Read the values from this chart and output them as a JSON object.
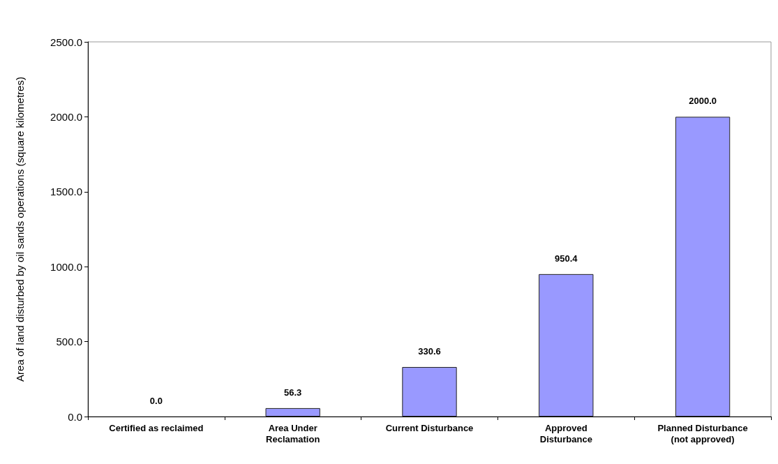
{
  "chart_data": {
    "type": "bar",
    "ylabel": "Area of land disturbed by oil sands operations (square kilometres)",
    "categories": [
      "Certified as reclaimed",
      "Area Under\nReclamation",
      "Current Disturbance",
      "Approved\nDisturbance",
      "Planned Disturbance\n(not approved)"
    ],
    "values": [
      0.0,
      56.3,
      330.6,
      950.4,
      2000.0
    ],
    "value_labels": [
      "0.0",
      "56.3",
      "330.6",
      "950.4",
      "2000.0"
    ],
    "color": "#9999ff",
    "ylim": [
      0,
      2500
    ],
    "yticks": [
      {
        "value": 0,
        "label": "0.0"
      },
      {
        "value": 500,
        "label": "500.0"
      },
      {
        "value": 1000,
        "label": "1000.0"
      },
      {
        "value": 1500,
        "label": "1500.0"
      },
      {
        "value": 2000,
        "label": "2000.0"
      },
      {
        "value": 2500,
        "label": "2500.0"
      }
    ],
    "grid": false
  }
}
